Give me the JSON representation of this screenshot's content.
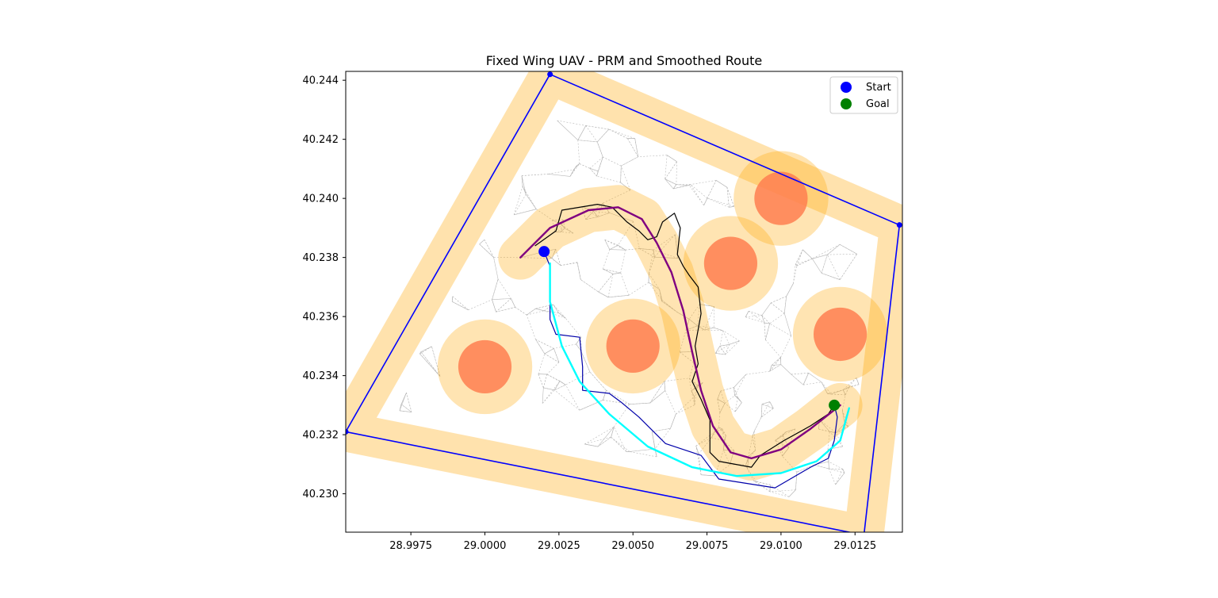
{
  "chart_data": {
    "type": "scatter",
    "title": "Fixed Wing UAV - PRM and Smoothed Route",
    "xlabel": "",
    "ylabel": "",
    "xlim": [
      28.9953,
      29.0141
    ],
    "ylim": [
      40.2287,
      40.2443
    ],
    "x_ticks": [
      28.9975,
      29.0,
      29.0025,
      29.005,
      29.0075,
      29.01,
      29.0125
    ],
    "x_tick_labels": [
      "28.9975",
      "29.0000",
      "29.0025",
      "29.0050",
      "29.0075",
      "29.0100",
      "29.0125"
    ],
    "y_ticks": [
      40.23,
      40.232,
      40.234,
      40.236,
      40.238,
      40.24,
      40.242,
      40.244
    ],
    "y_tick_labels": [
      "40.230",
      "40.232",
      "40.234",
      "40.236",
      "40.238",
      "40.240",
      "40.242",
      "40.244"
    ],
    "grid": false,
    "legend_position": "top-right",
    "legend": [
      {
        "label": "Start",
        "color": "#0000ff"
      },
      {
        "label": "Goal",
        "color": "#008000"
      }
    ],
    "start": {
      "x": 29.002,
      "y": 40.2382
    },
    "goal": {
      "x": 29.0118,
      "y": 40.233
    },
    "boundary": {
      "color": "#0000ff",
      "buffer_color": "#ffa500",
      "points": [
        [
          29.0022,
          40.2442
        ],
        [
          29.014,
          40.2391
        ],
        [
          29.0128,
          40.2286
        ],
        [
          28.9953,
          40.2321
        ]
      ]
    },
    "obstacles": [
      {
        "x": 29.0,
        "y": 40.2343,
        "r": 0.0009,
        "buffer_r": 0.0016
      },
      {
        "x": 29.005,
        "y": 40.235,
        "r": 0.0009,
        "buffer_r": 0.0016
      },
      {
        "x": 29.0083,
        "y": 40.2378,
        "r": 0.0009,
        "buffer_r": 0.0016
      },
      {
        "x": 29.01,
        "y": 40.24,
        "r": 0.0009,
        "buffer_r": 0.0016
      },
      {
        "x": 29.012,
        "y": 40.2354,
        "r": 0.0009,
        "buffer_r": 0.0016
      }
    ],
    "obstacle_color": "#ff7f50",
    "series": [
      {
        "color": "#000000",
        "values": [
          [
            29.0017,
            40.2384
          ],
          [
            29.0024,
            40.2389
          ],
          [
            29.0026,
            40.2396
          ],
          [
            29.0038,
            40.2398
          ],
          [
            29.0043,
            40.2397
          ],
          [
            29.0048,
            40.2392
          ],
          [
            29.0052,
            40.2389
          ],
          [
            29.0055,
            40.2386
          ],
          [
            29.0058,
            40.2387
          ],
          [
            29.006,
            40.2392
          ],
          [
            29.0064,
            40.2395
          ],
          [
            29.0066,
            40.239
          ],
          [
            29.0065,
            40.2381
          ],
          [
            29.0067,
            40.2377
          ],
          [
            29.0069,
            40.2374
          ],
          [
            29.0072,
            40.237
          ],
          [
            29.0073,
            40.2361
          ],
          [
            29.0071,
            40.235
          ],
          [
            29.0072,
            40.2344
          ],
          [
            29.007,
            40.2338
          ],
          [
            29.0073,
            40.2332
          ],
          [
            29.0076,
            40.2325
          ],
          [
            29.0076,
            40.2314
          ],
          [
            29.0079,
            40.2311
          ],
          [
            29.009,
            40.2309
          ],
          [
            29.0093,
            40.2313
          ],
          [
            29.0101,
            40.2318
          ],
          [
            29.011,
            40.2323
          ],
          [
            29.0116,
            40.2327
          ],
          [
            29.0118,
            40.233
          ]
        ]
      },
      {
        "color": "#800080",
        "values": [
          [
            29.0012,
            40.238
          ],
          [
            29.0022,
            40.239
          ],
          [
            29.0035,
            40.2396
          ],
          [
            29.0045,
            40.2397
          ],
          [
            29.0053,
            40.2393
          ],
          [
            29.0058,
            40.2385
          ],
          [
            29.0063,
            40.2375
          ],
          [
            29.0067,
            40.2362
          ],
          [
            29.007,
            40.2348
          ],
          [
            29.0073,
            40.2335
          ],
          [
            29.0077,
            40.2323
          ],
          [
            29.0083,
            40.2314
          ],
          [
            29.009,
            40.2312
          ],
          [
            29.01,
            40.2315
          ],
          [
            29.011,
            40.2322
          ],
          [
            29.012,
            40.233
          ]
        ]
      },
      {
        "color": "#0000aa",
        "values": [
          [
            29.002,
            40.2382
          ],
          [
            29.0022,
            40.2377
          ],
          [
            29.0022,
            40.2367
          ],
          [
            29.0022,
            40.2359
          ],
          [
            29.0024,
            40.2354
          ],
          [
            29.0032,
            40.2353
          ],
          [
            29.0033,
            40.2343
          ],
          [
            29.0033,
            40.2335
          ],
          [
            29.0042,
            40.2334
          ],
          [
            29.0046,
            40.2331
          ],
          [
            29.0052,
            40.2326
          ],
          [
            29.0061,
            40.2317
          ],
          [
            29.0073,
            40.2313
          ],
          [
            29.0079,
            40.2305
          ],
          [
            29.0098,
            40.2302
          ],
          [
            29.011,
            40.2309
          ],
          [
            29.0116,
            40.2312
          ],
          [
            29.0118,
            40.2318
          ],
          [
            29.0119,
            40.2326
          ],
          [
            29.0118,
            40.233
          ]
        ]
      },
      {
        "color": "#00ffff",
        "values": [
          [
            29.0022,
            40.2378
          ],
          [
            29.0022,
            40.2365
          ],
          [
            29.0026,
            40.235
          ],
          [
            29.0032,
            40.2338
          ],
          [
            29.0042,
            40.2327
          ],
          [
            29.0055,
            40.2316
          ],
          [
            29.007,
            40.2309
          ],
          [
            29.0085,
            40.2306
          ],
          [
            29.01,
            40.2307
          ],
          [
            29.0112,
            40.2311
          ],
          [
            29.012,
            40.2318
          ],
          [
            29.0123,
            40.2329
          ]
        ]
      }
    ]
  }
}
